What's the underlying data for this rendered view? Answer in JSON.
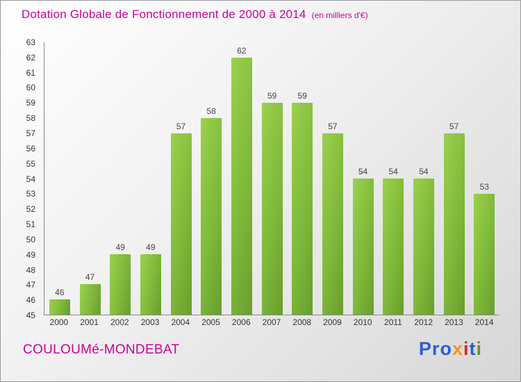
{
  "header": {
    "title": "Dotation Globale de Fonctionnement de 2000 à 2014",
    "subtitle": "(en milliers d'€)"
  },
  "chart_data": {
    "type": "bar",
    "title": "Dotation Globale de Fonctionnement de 2000 à 2014",
    "unit_label": "(en milliers d'€)",
    "categories": [
      "2000",
      "2001",
      "2002",
      "2003",
      "2004",
      "2005",
      "2006",
      "2007",
      "2008",
      "2009",
      "2010",
      "2011",
      "2012",
      "2013",
      "2014"
    ],
    "values": [
      46,
      47,
      49,
      49,
      57,
      58,
      62,
      59,
      59,
      57,
      54,
      54,
      54,
      57,
      53
    ],
    "xlabel": "",
    "ylabel": "",
    "ylim": [
      45,
      63
    ],
    "ytick_step": 1,
    "grid": false,
    "legend": "none",
    "bar_color_light": "#9bd14d",
    "bar_color_dark": "#689e2c"
  },
  "colors": {
    "accent_magenta": "#cc0099",
    "axis": "#888888",
    "tick_text": "#333333",
    "value_label_text": "#444444"
  },
  "footer": {
    "commune": "COULOUMé-MONDEBAT",
    "logo_letters": [
      {
        "char": "P",
        "color": "#2e5bd0"
      },
      {
        "char": "r",
        "color": "#2e5bd0"
      },
      {
        "char": "o",
        "color": "#2e5bd0"
      },
      {
        "char": "x",
        "color": "#f7941d"
      },
      {
        "char": "i",
        "color": "#d8262c"
      },
      {
        "char": "t",
        "color": "#2e5bd0"
      },
      {
        "char": "i",
        "color": "#5aa018"
      }
    ]
  }
}
